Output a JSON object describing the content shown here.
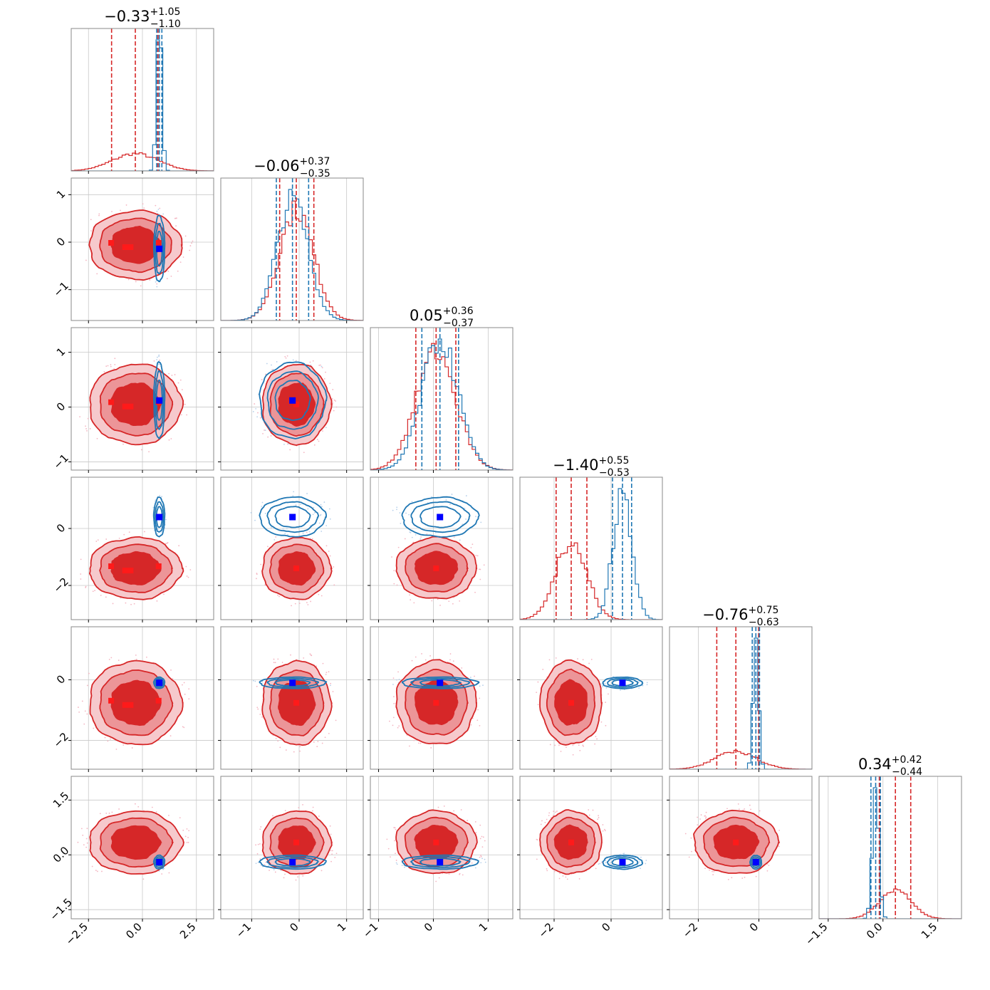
{
  "chart_data": {
    "type": "corner",
    "colors": {
      "primary": "#d62728",
      "secondary": "#1f77b4",
      "truth": "#0000ff",
      "grid": "#c8c8c8"
    },
    "params": [
      {
        "title_main": "−0.33",
        "title_up": "+1.05",
        "title_lo": "−1.10",
        "range": [
          -3.3,
          3.3
        ],
        "ticks": [
          -2.5,
          0.0,
          2.5
        ],
        "tick_labels": [
          "−2.5",
          "0.0",
          "2.5"
        ],
        "primary": {
          "mean": -0.33,
          "sigma": 1.07,
          "q": [
            -1.43,
            -0.33,
            0.72
          ]
        },
        "secondary": {
          "mean": 0.78,
          "sigma": 0.12,
          "q": [
            0.66,
            0.78,
            0.9
          ]
        },
        "truth": 0.78
      },
      {
        "title_main": "−0.06",
        "title_up": "+0.37",
        "title_lo": "−0.35",
        "range": [
          -1.65,
          1.35
        ],
        "ticks": [
          -1,
          0,
          1
        ],
        "tick_labels": [
          "−1",
          "0",
          "1"
        ],
        "primary": {
          "mean": -0.06,
          "sigma": 0.36,
          "q": [
            -0.41,
            -0.06,
            0.31
          ]
        },
        "secondary": {
          "mean": -0.14,
          "sigma": 0.33,
          "q": [
            -0.48,
            -0.14,
            0.2
          ]
        },
        "truth": -0.14
      },
      {
        "title_main": "0.05",
        "title_up": "+0.36",
        "title_lo": "−0.37",
        "range": [
          -1.15,
          1.45
        ],
        "ticks": [
          -1,
          0,
          1
        ],
        "tick_labels": [
          "−1",
          "0",
          "1"
        ],
        "primary": {
          "mean": 0.05,
          "sigma": 0.365,
          "q": [
            -0.32,
            0.05,
            0.41
          ]
        },
        "secondary": {
          "mean": 0.12,
          "sigma": 0.33,
          "q": [
            -0.21,
            0.12,
            0.46
          ]
        },
        "truth": 0.12
      },
      {
        "title_main": "−1.40",
        "title_up": "+0.55",
        "title_lo": "−0.53",
        "range": [
          -3.2,
          1.8
        ],
        "ticks": [
          -2,
          0
        ],
        "tick_labels": [
          "−2",
          "0"
        ],
        "primary": {
          "mean": -1.4,
          "sigma": 0.54,
          "q": [
            -1.93,
            -1.4,
            -0.85
          ]
        },
        "secondary": {
          "mean": 0.4,
          "sigma": 0.33,
          "q": [
            0.05,
            0.4,
            0.72
          ]
        },
        "truth": 0.4
      },
      {
        "title_main": "−0.76",
        "title_up": "+0.75",
        "title_lo": "−0.63",
        "range": [
          -2.95,
          1.75
        ],
        "ticks": [
          -2,
          0
        ],
        "tick_labels": [
          "−2",
          "0"
        ],
        "primary": {
          "mean": -0.76,
          "sigma": 0.69,
          "q": [
            -1.39,
            -0.76,
            -0.01
          ]
        },
        "secondary": {
          "mean": -0.1,
          "sigma": 0.09,
          "q": [
            -0.22,
            -0.1,
            0.02
          ]
        },
        "truth": -0.1
      },
      {
        "title_main": "0.34",
        "title_up": "+0.42",
        "title_lo": "−0.44",
        "range": [
          -1.75,
          2.15
        ],
        "ticks": [
          -1.5,
          0.0,
          1.5
        ],
        "tick_labels": [
          "−1.5",
          "0.0",
          "1.5"
        ],
        "primary": {
          "mean": 0.34,
          "sigma": 0.43,
          "q": [
            -0.1,
            0.34,
            0.76
          ]
        },
        "secondary": {
          "mean": -0.2,
          "sigma": 0.09,
          "q": [
            -0.33,
            -0.2,
            -0.07
          ]
        },
        "truth": -0.2
      }
    ],
    "red_markers": [
      [
        0.75,
        -0.55,
        -1.45,
        -0.8
      ],
      [
        0.75,
        -0.55,
        -1.45,
        -0.8
      ],
      [
        0.75,
        -0.55,
        -1.45,
        -0.8
      ],
      [
        0.75,
        -0.55,
        -1.45,
        -0.8
      ]
    ]
  }
}
